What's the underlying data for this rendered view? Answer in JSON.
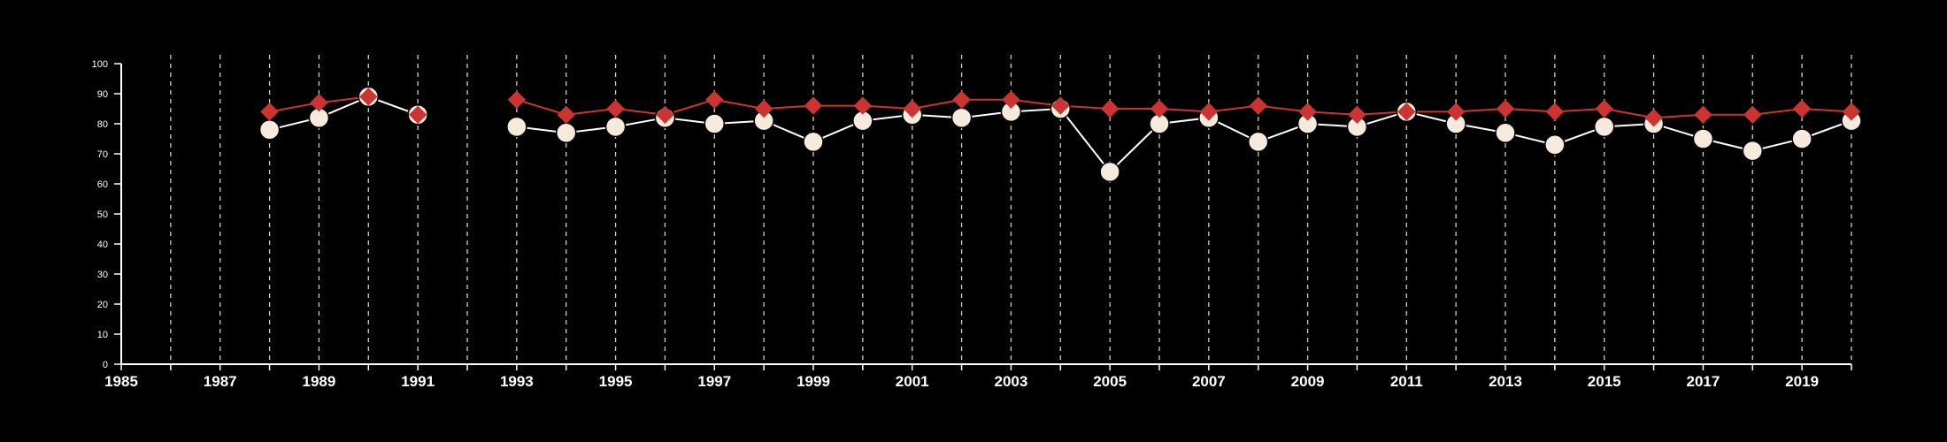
{
  "chart_data": {
    "type": "line",
    "title": "",
    "xlabel": "",
    "ylabel": "",
    "xlim": [
      1985,
      2020
    ],
    "ylim": [
      0,
      100
    ],
    "x_ticks": [
      1985,
      1987,
      1989,
      1991,
      1993,
      1995,
      1997,
      1999,
      2001,
      2003,
      2005,
      2007,
      2009,
      2011,
      2013,
      2015,
      2017,
      2019
    ],
    "x_tick_labels": [
      "1985",
      "1987",
      "1989",
      "1991",
      "1993",
      "1995",
      "1997",
      "1999",
      "2001",
      "2003",
      "2005",
      "2007",
      "2009",
      "2011",
      "2013",
      "2015",
      "2017",
      "2019"
    ],
    "y_ticks": [
      0,
      10,
      20,
      30,
      40,
      50,
      60,
      70,
      80,
      90,
      100
    ],
    "y_tick_labels": [
      "0",
      "10",
      "20",
      "30",
      "40",
      "50",
      "60",
      "70",
      "80",
      "90",
      "100"
    ],
    "vertical_gridlines": "dashed, one per year",
    "legend": "none",
    "series": [
      {
        "marker": "diamond",
        "color": "#cc3333",
        "points": [
          [
            1988,
            84
          ],
          [
            1989,
            87
          ],
          [
            1990,
            89
          ],
          [
            1991,
            83
          ],
          [
            1993,
            88
          ],
          [
            1994,
            83
          ],
          [
            1995,
            85
          ],
          [
            1996,
            83
          ],
          [
            1997,
            88
          ],
          [
            1998,
            85
          ],
          [
            1999,
            86
          ],
          [
            2000,
            86
          ],
          [
            2001,
            85
          ],
          [
            2002,
            88
          ],
          [
            2003,
            88
          ],
          [
            2004,
            86
          ],
          [
            2005,
            85
          ],
          [
            2006,
            85
          ],
          [
            2007,
            84
          ],
          [
            2008,
            86
          ],
          [
            2009,
            84
          ],
          [
            2010,
            83
          ],
          [
            2011,
            84
          ],
          [
            2012,
            84
          ],
          [
            2013,
            85
          ],
          [
            2014,
            84
          ],
          [
            2015,
            85
          ],
          [
            2016,
            82
          ],
          [
            2017,
            83
          ],
          [
            2018,
            83
          ],
          [
            2019,
            85
          ],
          [
            2020,
            84
          ]
        ]
      },
      {
        "marker": "circle",
        "color": "#f5eadc",
        "points": [
          [
            1988,
            78
          ],
          [
            1989,
            82
          ],
          [
            1990,
            89
          ],
          [
            1991,
            83
          ],
          [
            1993,
            79
          ],
          [
            1994,
            77
          ],
          [
            1995,
            79
          ],
          [
            1996,
            82
          ],
          [
            1997,
            80
          ],
          [
            1998,
            81
          ],
          [
            1999,
            74
          ],
          [
            2000,
            81
          ],
          [
            2001,
            83
          ],
          [
            2002,
            82
          ],
          [
            2003,
            84
          ],
          [
            2004,
            85
          ],
          [
            2005,
            64
          ],
          [
            2006,
            80
          ],
          [
            2007,
            82
          ],
          [
            2008,
            74
          ],
          [
            2009,
            80
          ],
          [
            2010,
            79
          ],
          [
            2011,
            84
          ],
          [
            2012,
            80
          ],
          [
            2013,
            77
          ],
          [
            2014,
            73
          ],
          [
            2015,
            79
          ],
          [
            2016,
            80
          ],
          [
            2017,
            75
          ],
          [
            2018,
            71
          ],
          [
            2019,
            75
          ],
          [
            2020,
            81
          ]
        ]
      }
    ]
  }
}
